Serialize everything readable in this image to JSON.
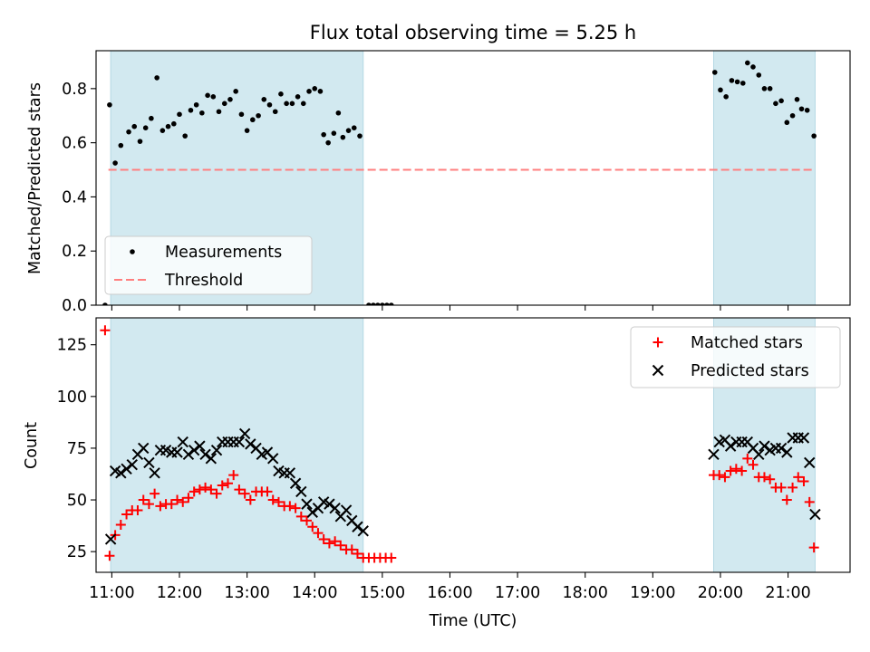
{
  "colors": {
    "measurement": "#000000",
    "threshold": "#ff7f7f",
    "matched": "#ff0000",
    "predicted": "#000000",
    "shade": "#d2e9f0",
    "shade_edge": "#b4d8e4",
    "axis": "#000000"
  },
  "chart_data": [
    {
      "type": "scatter",
      "title": "Flux total observing time = 5.25 h",
      "xlabel": "",
      "ylabel": "Matched/Predicted stars",
      "xlim": [
        10.767,
        21.917
      ],
      "ylim": [
        0,
        0.94
      ],
      "yticks": [
        0.0,
        0.2,
        0.4,
        0.6,
        0.8
      ],
      "ytick_labels": [
        "0.0",
        "0.2",
        "0.4",
        "0.6",
        "0.8"
      ],
      "shaded_x_ranges": [
        [
          10.983,
          14.717
        ],
        [
          19.9,
          21.4
        ]
      ],
      "legend": {
        "position": "lower-left",
        "entries": [
          "Measurements",
          "Threshold"
        ]
      },
      "threshold": {
        "name": "Threshold",
        "y": 0.5,
        "x_range": [
          10.95,
          21.4
        ]
      },
      "series": [
        {
          "name": "Measurements",
          "marker": "dot",
          "points": [
            [
              10.9,
              0.0
            ],
            [
              10.967,
              0.74
            ],
            [
              11.05,
              0.525
            ],
            [
              11.133,
              0.59
            ],
            [
              11.25,
              0.64
            ],
            [
              11.333,
              0.66
            ],
            [
              11.417,
              0.605
            ],
            [
              11.5,
              0.655
            ],
            [
              11.583,
              0.69
            ],
            [
              11.667,
              0.84
            ],
            [
              11.75,
              0.645
            ],
            [
              11.833,
              0.66
            ],
            [
              11.917,
              0.67
            ],
            [
              12.0,
              0.705
            ],
            [
              12.083,
              0.625
            ],
            [
              12.167,
              0.72
            ],
            [
              12.25,
              0.74
            ],
            [
              12.333,
              0.71
            ],
            [
              12.417,
              0.775
            ],
            [
              12.5,
              0.77
            ],
            [
              12.583,
              0.715
            ],
            [
              12.667,
              0.745
            ],
            [
              12.75,
              0.76
            ],
            [
              12.833,
              0.79
            ],
            [
              12.917,
              0.705
            ],
            [
              13.0,
              0.645
            ],
            [
              13.083,
              0.685
            ],
            [
              13.167,
              0.7
            ],
            [
              13.25,
              0.76
            ],
            [
              13.333,
              0.74
            ],
            [
              13.417,
              0.715
            ],
            [
              13.5,
              0.78
            ],
            [
              13.583,
              0.745
            ],
            [
              13.667,
              0.745
            ],
            [
              13.75,
              0.77
            ],
            [
              13.833,
              0.745
            ],
            [
              13.917,
              0.79
            ],
            [
              14.0,
              0.8
            ],
            [
              14.083,
              0.79
            ],
            [
              14.133,
              0.63
            ],
            [
              14.2,
              0.6
            ],
            [
              14.283,
              0.635
            ],
            [
              14.35,
              0.71
            ],
            [
              14.417,
              0.62
            ],
            [
              14.5,
              0.645
            ],
            [
              14.583,
              0.655
            ],
            [
              14.667,
              0.625
            ],
            [
              14.8,
              0.0
            ],
            [
              14.867,
              0.0
            ],
            [
              14.933,
              0.0
            ],
            [
              15.0,
              0.0
            ],
            [
              15.067,
              0.0
            ],
            [
              15.133,
              0.0
            ],
            [
              19.917,
              0.86
            ],
            [
              20.0,
              0.795
            ],
            [
              20.083,
              0.77
            ],
            [
              20.167,
              0.83
            ],
            [
              20.25,
              0.825
            ],
            [
              20.333,
              0.82
            ],
            [
              20.4,
              0.895
            ],
            [
              20.483,
              0.88
            ],
            [
              20.567,
              0.85
            ],
            [
              20.65,
              0.8
            ],
            [
              20.733,
              0.8
            ],
            [
              20.817,
              0.745
            ],
            [
              20.9,
              0.755
            ],
            [
              20.983,
              0.675
            ],
            [
              21.067,
              0.7
            ],
            [
              21.133,
              0.76
            ],
            [
              21.2,
              0.725
            ],
            [
              21.283,
              0.72
            ],
            [
              21.383,
              0.625
            ]
          ]
        }
      ]
    },
    {
      "type": "scatter",
      "title": "",
      "xlabel": "Time (UTC)",
      "ylabel": "Count",
      "xlim": [
        10.767,
        21.917
      ],
      "ylim": [
        15,
        138
      ],
      "yticks": [
        25,
        50,
        75,
        100,
        125
      ],
      "ytick_labels": [
        "25",
        "50",
        "75",
        "100",
        "125"
      ],
      "xticks": [
        11,
        12,
        13,
        14,
        15,
        16,
        17,
        18,
        19,
        20,
        21
      ],
      "xtick_labels": [
        "11:00",
        "12:00",
        "13:00",
        "14:00",
        "15:00",
        "16:00",
        "17:00",
        "18:00",
        "19:00",
        "20:00",
        "21:00"
      ],
      "shaded_x_ranges": [
        [
          10.983,
          14.717
        ],
        [
          19.9,
          21.4
        ]
      ],
      "legend": {
        "position": "top-right",
        "entries": [
          "Matched stars",
          "Predicted stars"
        ]
      },
      "series": [
        {
          "name": "Matched stars",
          "marker": "plus",
          "points": [
            [
              10.9,
              132
            ],
            [
              10.967,
              23
            ],
            [
              11.05,
              33
            ],
            [
              11.133,
              38
            ],
            [
              11.217,
              43
            ],
            [
              11.3,
              45
            ],
            [
              11.383,
              45
            ],
            [
              11.467,
              50
            ],
            [
              11.55,
              48
            ],
            [
              11.633,
              53
            ],
            [
              11.717,
              47
            ],
            [
              11.8,
              48
            ],
            [
              11.883,
              48
            ],
            [
              11.967,
              50
            ],
            [
              12.05,
              49
            ],
            [
              12.133,
              51
            ],
            [
              12.217,
              54
            ],
            [
              12.3,
              55
            ],
            [
              12.383,
              56
            ],
            [
              12.467,
              55
            ],
            [
              12.55,
              53
            ],
            [
              12.633,
              57
            ],
            [
              12.717,
              58
            ],
            [
              12.8,
              62
            ],
            [
              12.883,
              55
            ],
            [
              12.967,
              53
            ],
            [
              13.05,
              50
            ],
            [
              13.133,
              54
            ],
            [
              13.217,
              54
            ],
            [
              13.3,
              54
            ],
            [
              13.383,
              50
            ],
            [
              13.467,
              49
            ],
            [
              13.55,
              47
            ],
            [
              13.633,
              47
            ],
            [
              13.717,
              46
            ],
            [
              13.8,
              42
            ],
            [
              13.883,
              40
            ],
            [
              13.967,
              37
            ],
            [
              14.05,
              34
            ],
            [
              14.133,
              31
            ],
            [
              14.217,
              29
            ],
            [
              14.3,
              30
            ],
            [
              14.383,
              28
            ],
            [
              14.467,
              26
            ],
            [
              14.55,
              26
            ],
            [
              14.633,
              24
            ],
            [
              14.717,
              22
            ],
            [
              14.8,
              22
            ],
            [
              14.883,
              22
            ],
            [
              14.967,
              22
            ],
            [
              15.05,
              22
            ],
            [
              15.133,
              22
            ],
            [
              19.9,
              62
            ],
            [
              19.983,
              62
            ],
            [
              20.067,
              61
            ],
            [
              20.15,
              64
            ],
            [
              20.233,
              65
            ],
            [
              20.317,
              64
            ],
            [
              20.4,
              70
            ],
            [
              20.483,
              67
            ],
            [
              20.567,
              61
            ],
            [
              20.65,
              61
            ],
            [
              20.733,
              60
            ],
            [
              20.817,
              56
            ],
            [
              20.9,
              56
            ],
            [
              20.983,
              50
            ],
            [
              21.067,
              56
            ],
            [
              21.15,
              61
            ],
            [
              21.233,
              59
            ],
            [
              21.317,
              49
            ],
            [
              21.383,
              27
            ]
          ]
        },
        {
          "name": "Predicted stars",
          "marker": "x",
          "points": [
            [
              10.983,
              31
            ],
            [
              11.05,
              64
            ],
            [
              11.133,
              63
            ],
            [
              11.217,
              65
            ],
            [
              11.3,
              67
            ],
            [
              11.383,
              72
            ],
            [
              11.467,
              75
            ],
            [
              11.55,
              68
            ],
            [
              11.633,
              63
            ],
            [
              11.717,
              74
            ],
            [
              11.8,
              74
            ],
            [
              11.883,
              73
            ],
            [
              11.967,
              73
            ],
            [
              12.05,
              78
            ],
            [
              12.133,
              72
            ],
            [
              12.217,
              74
            ],
            [
              12.3,
              76
            ],
            [
              12.383,
              72
            ],
            [
              12.467,
              70
            ],
            [
              12.55,
              74
            ],
            [
              12.633,
              78
            ],
            [
              12.717,
              78
            ],
            [
              12.8,
              78
            ],
            [
              12.883,
              78
            ],
            [
              12.967,
              82
            ],
            [
              13.05,
              77
            ],
            [
              13.133,
              75
            ],
            [
              13.217,
              72
            ],
            [
              13.3,
              73
            ],
            [
              13.383,
              70
            ],
            [
              13.467,
              64
            ],
            [
              13.55,
              63
            ],
            [
              13.633,
              63
            ],
            [
              13.717,
              58
            ],
            [
              13.8,
              54
            ],
            [
              13.883,
              48
            ],
            [
              13.967,
              44
            ],
            [
              14.05,
              46
            ],
            [
              14.133,
              49
            ],
            [
              14.217,
              48
            ],
            [
              14.3,
              46
            ],
            [
              14.383,
              42
            ],
            [
              14.467,
              45
            ],
            [
              14.55,
              40
            ],
            [
              14.633,
              37
            ],
            [
              14.717,
              35
            ],
            [
              19.9,
              72
            ],
            [
              19.983,
              78
            ],
            [
              20.067,
              79
            ],
            [
              20.15,
              76
            ],
            [
              20.233,
              78
            ],
            [
              20.317,
              78
            ],
            [
              20.4,
              78
            ],
            [
              20.483,
              75
            ],
            [
              20.567,
              72
            ],
            [
              20.65,
              76
            ],
            [
              20.733,
              74
            ],
            [
              20.817,
              75
            ],
            [
              20.9,
              75
            ],
            [
              20.983,
              73
            ],
            [
              21.067,
              80
            ],
            [
              21.15,
              80
            ],
            [
              21.233,
              80
            ],
            [
              21.317,
              68
            ],
            [
              21.4,
              43
            ]
          ]
        }
      ]
    }
  ]
}
